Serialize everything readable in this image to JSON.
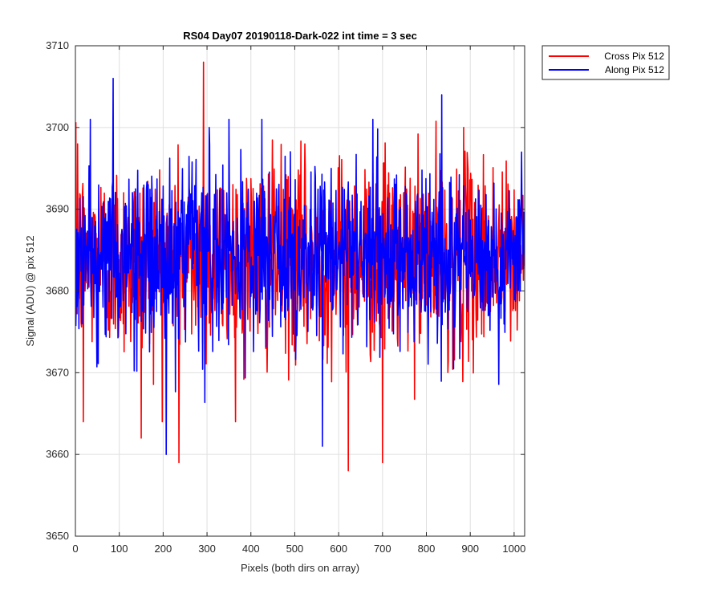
{
  "chart_data": {
    "type": "line",
    "title": "RS04 Day07 20190118-Dark-022 int time = 3 sec",
    "xlabel": "Pixels (both dirs on array)",
    "ylabel": "Signal (ADU) @ pix 512",
    "xlim": [
      0,
      1024
    ],
    "ylim": [
      3650,
      3710
    ],
    "xticks": [
      0,
      100,
      200,
      300,
      400,
      500,
      600,
      700,
      800,
      900,
      1000
    ],
    "yticks": [
      3650,
      3660,
      3670,
      3680,
      3690,
      3700,
      3710
    ],
    "grid": true,
    "legend_position": "top-right, outside plot",
    "series": [
      {
        "name": "Cross Pix 512",
        "color": "#ff0000",
        "n_points": 1024,
        "x_step": 1,
        "x_start": 1,
        "mean": 3684,
        "noise_sd": 6,
        "extremes": [
          {
            "x": 5,
            "y": 3698
          },
          {
            "x": 18,
            "y": 3664
          },
          {
            "x": 150,
            "y": 3662
          },
          {
            "x": 236,
            "y": 3659
          },
          {
            "x": 292,
            "y": 3708
          },
          {
            "x": 622,
            "y": 3658
          },
          {
            "x": 700,
            "y": 3659
          },
          {
            "x": 885,
            "y": 3700
          }
        ]
      },
      {
        "name": "Along Pix 512",
        "color": "#0000ff",
        "n_points": 1024,
        "x_step": 1,
        "x_start": 1,
        "mean": 3684,
        "noise_sd": 5.5,
        "extremes": [
          {
            "x": 86,
            "y": 3706
          },
          {
            "x": 207,
            "y": 3660
          },
          {
            "x": 305,
            "y": 3700
          },
          {
            "x": 563,
            "y": 3661
          },
          {
            "x": 835,
            "y": 3704
          },
          {
            "x": 1017,
            "y": 3697
          }
        ]
      }
    ]
  }
}
